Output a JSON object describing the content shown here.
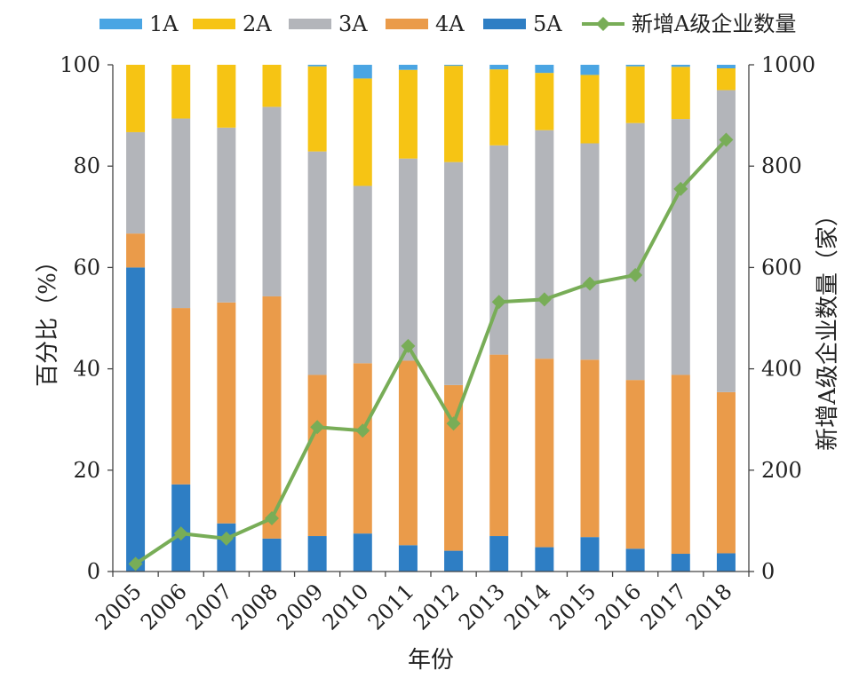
{
  "chart_data": {
    "type": "bar",
    "stacked": true,
    "xlabel": "年份",
    "ylabel": "百分比（%）",
    "y2label": "新增A级企业数量（家）",
    "ylim": [
      0,
      100
    ],
    "y2lim": [
      0,
      1000
    ],
    "yticks": [
      0,
      20,
      40,
      60,
      80,
      100
    ],
    "y2ticks": [
      0,
      200,
      400,
      600,
      800,
      1000
    ],
    "legend_position": "top",
    "grid": false,
    "categories": [
      "2005",
      "2006",
      "2007",
      "2008",
      "2009",
      "2010",
      "2011",
      "2012",
      "2013",
      "2014",
      "2015",
      "2016",
      "2017",
      "2018"
    ],
    "series": [
      {
        "name": "5A",
        "color": "#2e7ec4",
        "values": [
          60.0,
          17.2,
          9.5,
          6.5,
          7.0,
          7.5,
          5.2,
          4.1,
          7.0,
          4.8,
          6.8,
          4.5,
          3.5,
          3.6
        ]
      },
      {
        "name": "4A",
        "color": "#ea9b4a",
        "values": [
          6.7,
          34.8,
          43.6,
          47.8,
          31.8,
          33.6,
          36.4,
          32.7,
          35.8,
          37.2,
          35.0,
          33.3,
          35.3,
          31.8
        ]
      },
      {
        "name": "3A",
        "color": "#b3b5ba",
        "values": [
          20.0,
          37.4,
          34.5,
          37.4,
          44.1,
          35.0,
          39.9,
          44.0,
          41.3,
          45.1,
          42.7,
          50.7,
          50.5,
          59.6
        ]
      },
      {
        "name": "2A",
        "color": "#f6c414",
        "values": [
          13.3,
          10.6,
          12.4,
          8.3,
          16.8,
          21.2,
          17.5,
          19.0,
          15.0,
          11.3,
          13.5,
          11.2,
          10.3,
          4.3
        ]
      },
      {
        "name": "1A",
        "color": "#4aa5e3",
        "values": [
          0.0,
          0.0,
          0.0,
          0.0,
          0.3,
          2.7,
          1.0,
          0.2,
          0.9,
          1.6,
          2.0,
          0.3,
          0.4,
          0.7
        ]
      }
    ],
    "line": {
      "name": "新增A级企业数量",
      "color": "#78ad57",
      "axis": "secondary",
      "values": [
        15,
        75,
        65,
        105,
        285,
        278,
        445,
        292,
        532,
        537,
        568,
        585,
        755,
        852
      ]
    },
    "legend_order": [
      "1A",
      "2A",
      "3A",
      "4A",
      "5A",
      "新增A级企业数量"
    ]
  }
}
